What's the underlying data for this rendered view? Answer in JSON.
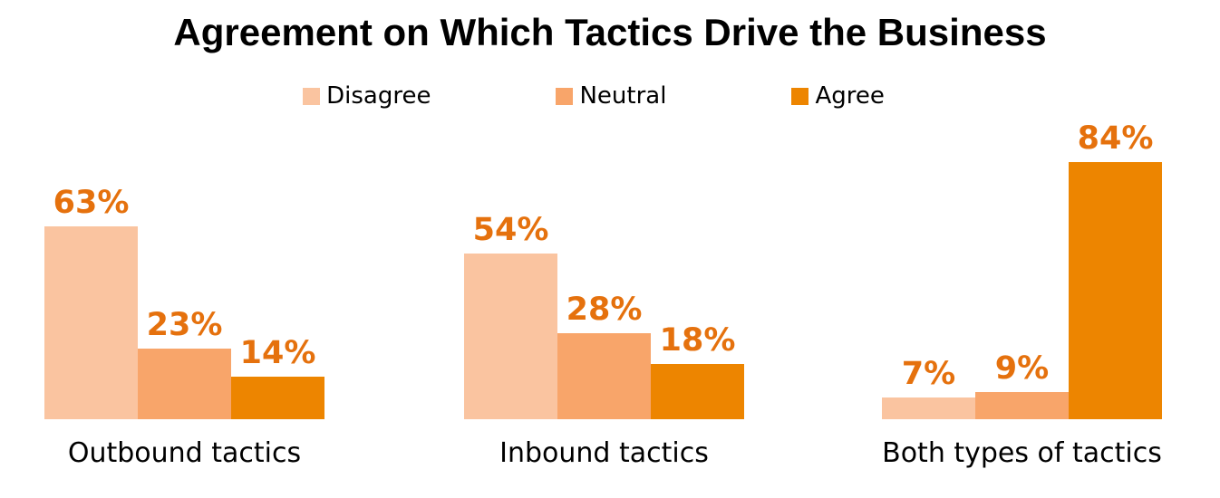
{
  "title": "Agreement on Which Tactics Drive the Business",
  "chart_data": {
    "type": "bar",
    "title": "Agreement on Which Tactics Drive the Business",
    "categories": [
      "Outbound tactics",
      "Inbound tactics",
      "Both types of tactics"
    ],
    "series": [
      {
        "name": "Disagree",
        "color": "#FAC4A0",
        "values": [
          63,
          54,
          7
        ]
      },
      {
        "name": "Neutral",
        "color": "#F8A56A",
        "values": [
          23,
          28,
          9
        ]
      },
      {
        "name": "Agree",
        "color": "#ED8500",
        "values": [
          14,
          18,
          84
        ]
      }
    ],
    "value_suffix": "%",
    "data_labels": true,
    "ylim": [
      0,
      100
    ],
    "grid": false,
    "axes_visible": false,
    "legend_position": "top",
    "legend": [
      "Disagree",
      "Neutral",
      "Agree"
    ]
  },
  "colors": {
    "bar_disagree": "#FAC4A0",
    "bar_neutral": "#F8A56A",
    "bar_agree": "#ED8500",
    "value_label_text": "#E5710D",
    "title_text": "#000000",
    "category_text": "#000000",
    "background": "#FFFFFF"
  }
}
